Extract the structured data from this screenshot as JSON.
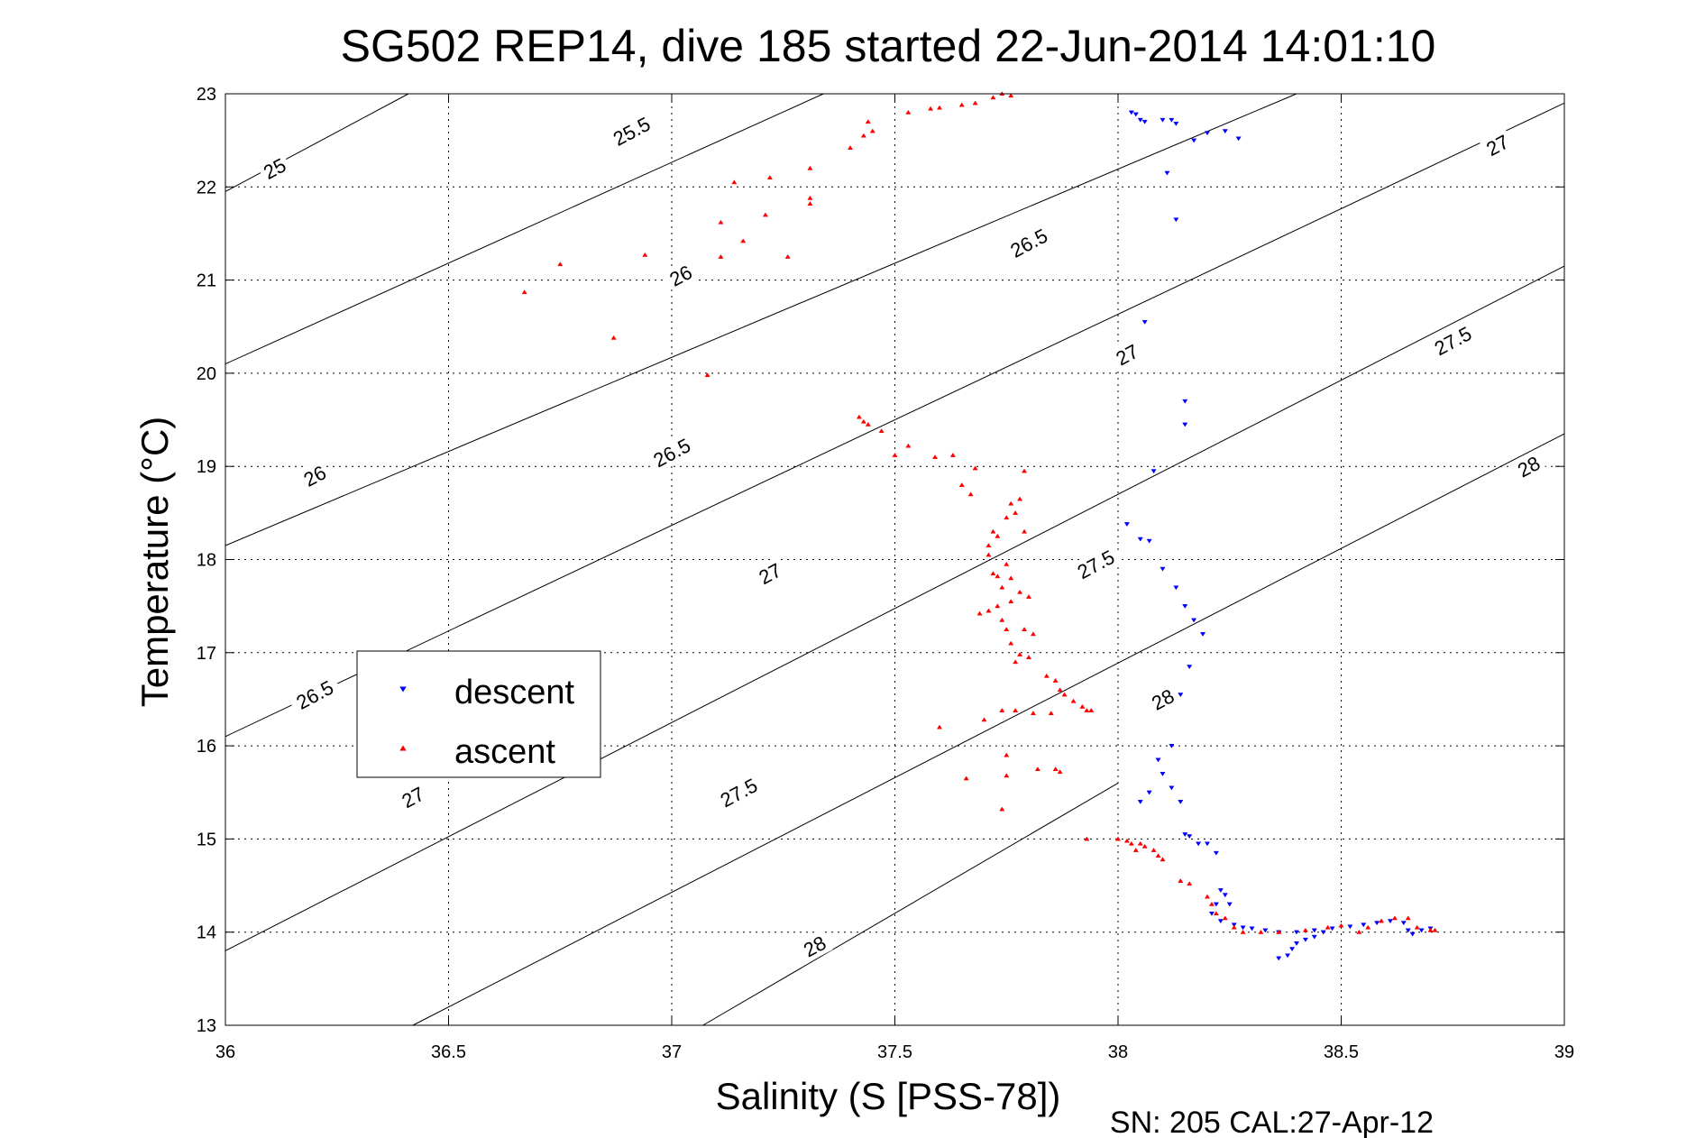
{
  "chart_data": {
    "type": "scatter",
    "title": "SG502 REP14, dive 185 started 22-Jun-2014 14:01:10",
    "xlabel": "Salinity (S [PSS-78])",
    "ylabel": "Temperature (°C)",
    "footer": "SN: 205  CAL:27-Apr-12",
    "xlim": [
      36,
      39
    ],
    "ylim": [
      13,
      23
    ],
    "xticks": [
      36,
      36.5,
      37,
      37.5,
      38,
      38.5,
      39
    ],
    "yticks": [
      13,
      14,
      15,
      16,
      17,
      18,
      19,
      20,
      21,
      22,
      23
    ],
    "xtick_labels": [
      "36",
      "36.5",
      "37",
      "37.5",
      "38",
      "38.5",
      "39"
    ],
    "ytick_labels": [
      "13",
      "14",
      "15",
      "16",
      "17",
      "18",
      "19",
      "20",
      "21",
      "22",
      "23"
    ],
    "grid": true,
    "legend_position": "middle-left",
    "isopycnal_lines": [
      {
        "x": [
          36.0,
          36.41
        ],
        "y": [
          21.95,
          23.0
        ]
      },
      {
        "x": [
          36.0,
          37.34
        ],
        "y": [
          20.1,
          23.0
        ]
      },
      {
        "x": [
          36.0,
          38.4
        ],
        "y": [
          18.15,
          23.0
        ]
      },
      {
        "x": [
          36.0,
          39.0
        ],
        "y": [
          16.1,
          22.9
        ]
      },
      {
        "x": [
          36.0,
          39.0
        ],
        "y": [
          13.8,
          21.15
        ]
      },
      {
        "x": [
          36.42,
          39.0
        ],
        "y": [
          13.0,
          19.35
        ]
      },
      {
        "x": [
          37.07,
          38.0
        ],
        "y": [
          13.0,
          15.6
        ]
      }
    ],
    "contour_labels": [
      {
        "text": "25",
        "x": 36.11,
        "y": 22.2,
        "angle": -28
      },
      {
        "text": "25.5",
        "x": 36.91,
        "y": 22.6,
        "angle": -28
      },
      {
        "text": "26",
        "x": 37.02,
        "y": 21.05,
        "angle": -28
      },
      {
        "text": "26",
        "x": 36.2,
        "y": 18.9,
        "angle": -28
      },
      {
        "text": "26.5",
        "x": 37.8,
        "y": 21.4,
        "angle": -28
      },
      {
        "text": "26.5",
        "x": 37.0,
        "y": 19.15,
        "angle": -28
      },
      {
        "text": "26.5",
        "x": 36.2,
        "y": 16.55,
        "angle": -28
      },
      {
        "text": "27",
        "x": 38.85,
        "y": 22.45,
        "angle": -28
      },
      {
        "text": "27",
        "x": 38.02,
        "y": 20.2,
        "angle": -28
      },
      {
        "text": "27",
        "x": 37.22,
        "y": 17.85,
        "angle": -28
      },
      {
        "text": "27",
        "x": 36.42,
        "y": 15.45,
        "angle": -28
      },
      {
        "text": "27.5",
        "x": 38.75,
        "y": 20.35,
        "angle": -28
      },
      {
        "text": "27.5",
        "x": 37.95,
        "y": 17.95,
        "angle": -28
      },
      {
        "text": "27.5",
        "x": 37.15,
        "y": 15.5,
        "angle": -28
      },
      {
        "text": "28",
        "x": 38.92,
        "y": 19.0,
        "angle": -28
      },
      {
        "text": "28",
        "x": 38.1,
        "y": 16.5,
        "angle": -28
      },
      {
        "text": "28",
        "x": 37.32,
        "y": 13.85,
        "angle": -28
      }
    ],
    "series": [
      {
        "name": "descent",
        "color": "#0000ff",
        "marker": "triangle-down",
        "points": [
          [
            38.03,
            22.8
          ],
          [
            38.04,
            22.78
          ],
          [
            38.05,
            22.72
          ],
          [
            38.06,
            22.7
          ],
          [
            38.1,
            22.72
          ],
          [
            38.12,
            22.72
          ],
          [
            38.13,
            22.68
          ],
          [
            38.17,
            22.5
          ],
          [
            38.2,
            22.58
          ],
          [
            38.24,
            22.6
          ],
          [
            38.27,
            22.52
          ],
          [
            38.11,
            22.15
          ],
          [
            38.13,
            21.65
          ],
          [
            38.06,
            20.55
          ],
          [
            38.15,
            19.7
          ],
          [
            38.15,
            19.45
          ],
          [
            38.08,
            18.95
          ],
          [
            38.02,
            18.38
          ],
          [
            38.05,
            18.22
          ],
          [
            38.07,
            18.2
          ],
          [
            38.1,
            17.9
          ],
          [
            38.13,
            17.7
          ],
          [
            38.15,
            17.5
          ],
          [
            38.17,
            17.35
          ],
          [
            38.19,
            17.2
          ],
          [
            38.16,
            16.85
          ],
          [
            38.14,
            16.55
          ],
          [
            38.12,
            16.0
          ],
          [
            38.09,
            15.85
          ],
          [
            38.1,
            15.7
          ],
          [
            38.12,
            15.55
          ],
          [
            38.07,
            15.5
          ],
          [
            38.05,
            15.4
          ],
          [
            38.14,
            15.4
          ],
          [
            38.15,
            15.05
          ],
          [
            38.16,
            15.03
          ],
          [
            38.18,
            14.95
          ],
          [
            38.2,
            14.95
          ],
          [
            38.22,
            14.85
          ],
          [
            38.23,
            14.45
          ],
          [
            38.24,
            14.4
          ],
          [
            38.25,
            14.3
          ],
          [
            38.22,
            14.3
          ],
          [
            38.21,
            14.2
          ],
          [
            38.23,
            14.12
          ],
          [
            38.26,
            14.08
          ],
          [
            38.28,
            14.05
          ],
          [
            38.3,
            14.04
          ],
          [
            38.33,
            14.02
          ],
          [
            38.36,
            14.0
          ],
          [
            38.4,
            14.0
          ],
          [
            38.44,
            14.02
          ],
          [
            38.46,
            14.0
          ],
          [
            38.36,
            13.72
          ],
          [
            38.38,
            13.75
          ],
          [
            38.39,
            13.82
          ],
          [
            38.4,
            13.88
          ],
          [
            38.42,
            13.92
          ],
          [
            38.44,
            13.95
          ],
          [
            38.48,
            14.04
          ],
          [
            38.52,
            14.06
          ],
          [
            38.55,
            14.08
          ],
          [
            38.58,
            14.1
          ],
          [
            38.61,
            14.12
          ],
          [
            38.64,
            14.1
          ],
          [
            38.65,
            14.02
          ],
          [
            38.66,
            13.98
          ],
          [
            38.68,
            14.02
          ],
          [
            38.7,
            14.04
          ]
        ]
      },
      {
        "name": "ascent",
        "color": "#ff0000",
        "marker": "triangle-up",
        "points": [
          [
            37.74,
            23.0
          ],
          [
            37.76,
            22.98
          ],
          [
            37.72,
            22.96
          ],
          [
            37.68,
            22.9
          ],
          [
            37.65,
            22.88
          ],
          [
            37.6,
            22.85
          ],
          [
            37.58,
            22.84
          ],
          [
            37.53,
            22.8
          ],
          [
            37.44,
            22.7
          ],
          [
            37.45,
            22.6
          ],
          [
            37.43,
            22.55
          ],
          [
            37.4,
            22.42
          ],
          [
            37.31,
            22.2
          ],
          [
            37.22,
            22.1
          ],
          [
            37.14,
            22.05
          ],
          [
            37.31,
            21.88
          ],
          [
            37.31,
            21.82
          ],
          [
            37.21,
            21.7
          ],
          [
            37.11,
            21.62
          ],
          [
            37.16,
            21.42
          ],
          [
            37.11,
            21.25
          ],
          [
            37.26,
            21.25
          ],
          [
            36.94,
            21.27
          ],
          [
            36.75,
            21.17
          ],
          [
            36.67,
            20.87
          ],
          [
            36.87,
            20.38
          ],
          [
            37.08,
            19.98
          ],
          [
            37.42,
            19.53
          ],
          [
            37.43,
            19.48
          ],
          [
            37.44,
            19.45
          ],
          [
            37.47,
            19.38
          ],
          [
            37.53,
            19.22
          ],
          [
            37.5,
            19.12
          ],
          [
            37.63,
            19.12
          ],
          [
            37.59,
            19.1
          ],
          [
            37.68,
            18.98
          ],
          [
            37.79,
            18.95
          ],
          [
            37.65,
            18.8
          ],
          [
            37.67,
            18.7
          ],
          [
            37.78,
            18.65
          ],
          [
            37.76,
            18.6
          ],
          [
            37.77,
            18.5
          ],
          [
            37.75,
            18.45
          ],
          [
            37.79,
            18.3
          ],
          [
            37.72,
            18.3
          ],
          [
            37.73,
            18.25
          ],
          [
            37.71,
            18.15
          ],
          [
            37.71,
            18.05
          ],
          [
            37.75,
            17.95
          ],
          [
            37.72,
            17.85
          ],
          [
            37.73,
            17.82
          ],
          [
            37.76,
            17.8
          ],
          [
            37.74,
            17.7
          ],
          [
            37.78,
            17.65
          ],
          [
            37.8,
            17.6
          ],
          [
            37.76,
            17.55
          ],
          [
            37.73,
            17.5
          ],
          [
            37.71,
            17.45
          ],
          [
            37.69,
            17.42
          ],
          [
            37.74,
            17.35
          ],
          [
            37.75,
            17.25
          ],
          [
            37.79,
            17.25
          ],
          [
            37.81,
            17.2
          ],
          [
            37.76,
            17.1
          ],
          [
            37.78,
            16.98
          ],
          [
            37.8,
            16.95
          ],
          [
            37.77,
            16.9
          ],
          [
            37.84,
            16.75
          ],
          [
            37.86,
            16.7
          ],
          [
            37.87,
            16.6
          ],
          [
            37.88,
            16.55
          ],
          [
            37.9,
            16.48
          ],
          [
            37.92,
            16.42
          ],
          [
            37.93,
            16.38
          ],
          [
            37.94,
            16.38
          ],
          [
            37.85,
            16.35
          ],
          [
            37.81,
            16.35
          ],
          [
            37.77,
            16.38
          ],
          [
            37.74,
            16.38
          ],
          [
            37.7,
            16.28
          ],
          [
            37.6,
            16.2
          ],
          [
            37.75,
            15.9
          ],
          [
            37.82,
            15.75
          ],
          [
            37.86,
            15.75
          ],
          [
            37.87,
            15.72
          ],
          [
            37.75,
            15.68
          ],
          [
            37.66,
            15.65
          ],
          [
            37.74,
            15.32
          ],
          [
            37.93,
            15.0
          ],
          [
            38.0,
            15.0
          ],
          [
            38.02,
            14.98
          ],
          [
            38.03,
            14.95
          ],
          [
            38.05,
            14.95
          ],
          [
            38.06,
            14.92
          ],
          [
            38.04,
            14.88
          ],
          [
            38.08,
            14.88
          ],
          [
            38.09,
            14.82
          ],
          [
            38.1,
            14.78
          ],
          [
            38.14,
            14.55
          ],
          [
            38.16,
            14.52
          ],
          [
            38.2,
            14.38
          ],
          [
            38.21,
            14.3
          ],
          [
            38.22,
            14.2
          ],
          [
            38.24,
            14.15
          ],
          [
            38.26,
            14.05
          ],
          [
            38.28,
            14.0
          ],
          [
            38.32,
            14.0
          ],
          [
            38.36,
            14.0
          ],
          [
            38.42,
            14.02
          ],
          [
            38.47,
            14.05
          ],
          [
            38.5,
            14.07
          ],
          [
            38.54,
            14.0
          ],
          [
            38.56,
            14.05
          ],
          [
            38.59,
            14.12
          ],
          [
            38.62,
            14.15
          ],
          [
            38.65,
            14.15
          ],
          [
            38.67,
            14.05
          ],
          [
            38.7,
            14.02
          ],
          [
            38.71,
            14.02
          ]
        ]
      }
    ]
  }
}
